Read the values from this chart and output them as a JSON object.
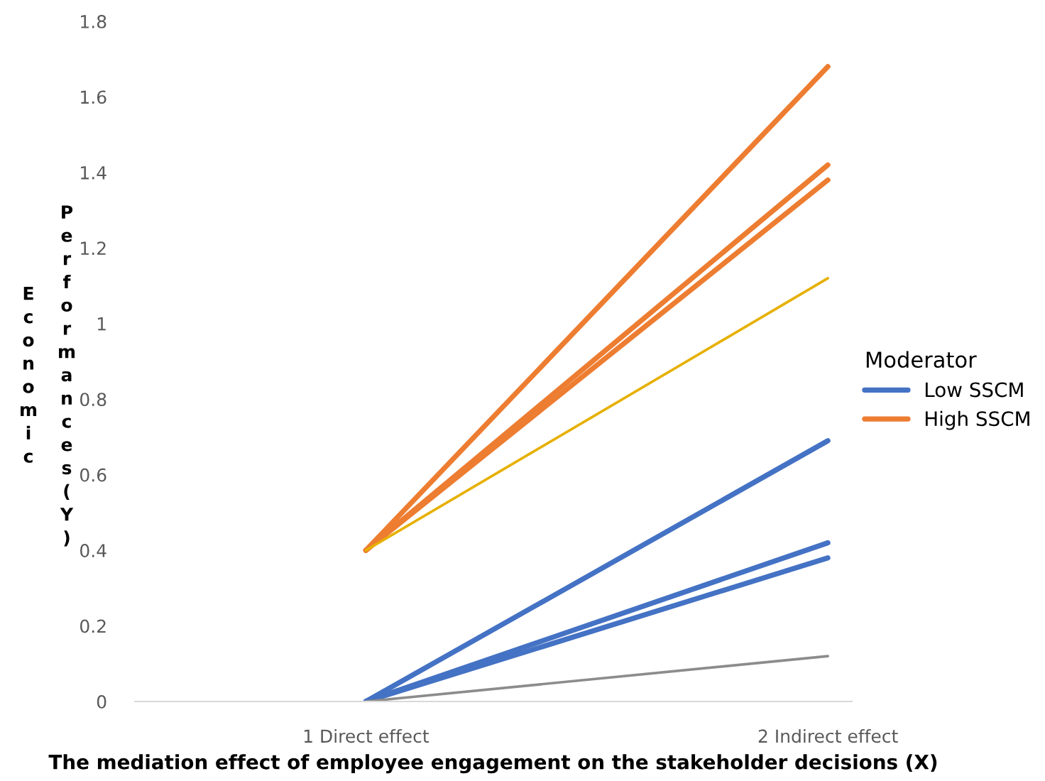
{
  "chart_data": {
    "type": "line",
    "xlabel": "The mediation effect of employee engagement on the stakeholder decisions (X)",
    "ylabel": "Economic Performances (Y)",
    "legend_title": "Moderator",
    "legend": "right",
    "grid": false,
    "marker": "none",
    "line_style": "solid",
    "categories": [
      "1 Direct effect",
      "2 Indirect effect"
    ],
    "ylim": [
      0,
      1.8
    ],
    "yticks": [
      0,
      0.2,
      0.4,
      0.6,
      0.8,
      1,
      1.2,
      1.4,
      1.6,
      1.8
    ],
    "series": [
      {
        "color": "#ed7d31",
        "values": [
          0.4,
          1.68
        ]
      },
      {
        "color": "#ed7d31",
        "values": [
          0.4,
          1.42
        ]
      },
      {
        "name": "High SSCM",
        "color": "#ed7d31",
        "values": [
          0.4,
          1.38
        ]
      },
      {
        "color": "#e6b000",
        "values": [
          0.4,
          1.12
        ]
      },
      {
        "color": "#4472c4",
        "values": [
          0,
          0.69
        ]
      },
      {
        "color": "#4472c4",
        "values": [
          0,
          0.42
        ]
      },
      {
        "name": "Low SSCM",
        "color": "#4472c4",
        "values": [
          0,
          0.38
        ]
      },
      {
        "color": "#8c8c8c",
        "values": [
          0,
          0.12
        ]
      }
    ]
  }
}
